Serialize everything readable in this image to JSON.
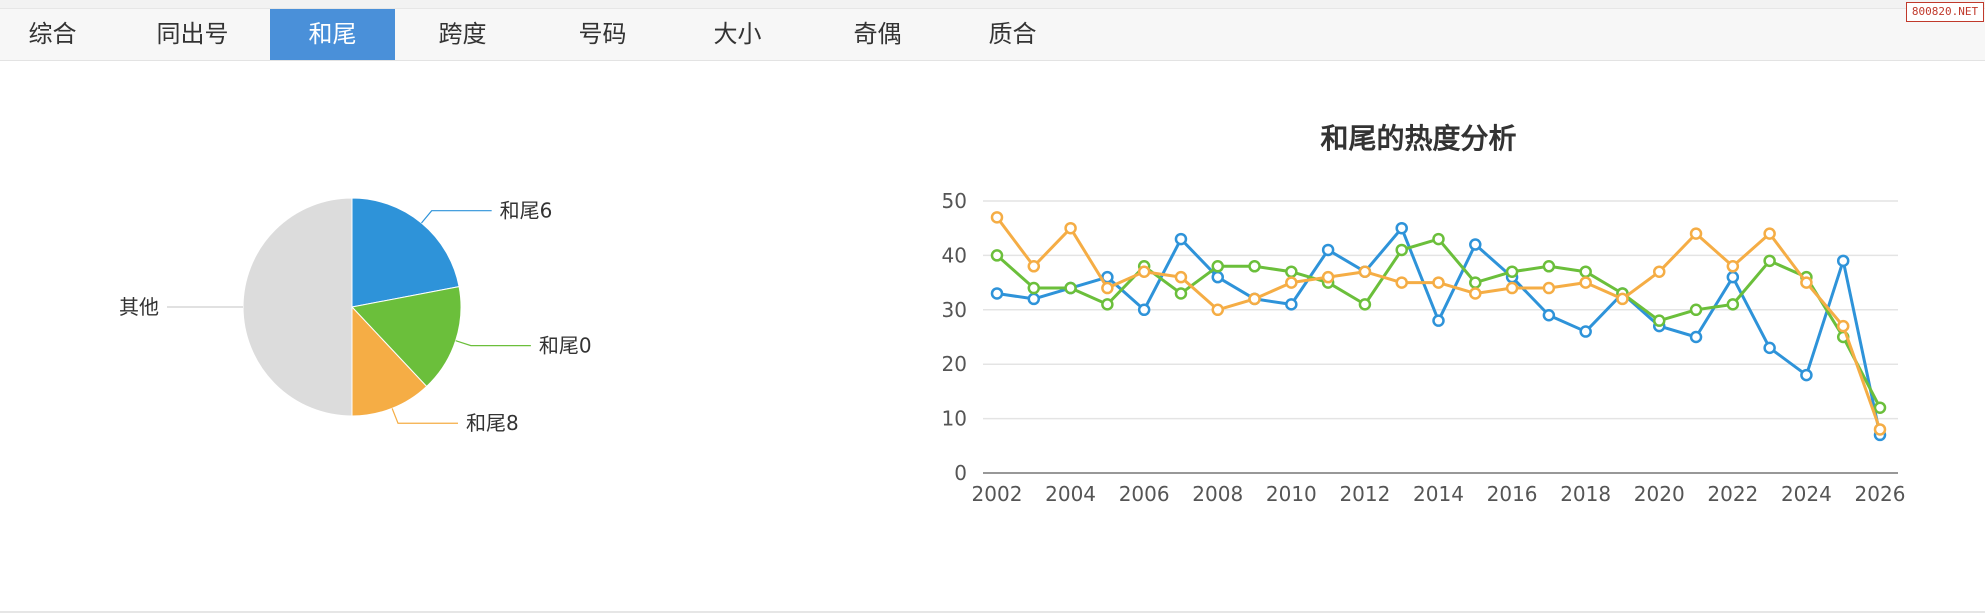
{
  "tabs": [
    {
      "label": "综合",
      "active": false
    },
    {
      "label": "同出号",
      "active": false
    },
    {
      "label": "和尾",
      "active": true
    },
    {
      "label": "跨度",
      "active": false
    },
    {
      "label": "号码",
      "active": false
    },
    {
      "label": "大小",
      "active": false
    },
    {
      "label": "奇偶",
      "active": false
    },
    {
      "label": "质合",
      "active": false
    }
  ],
  "watermark": "800820.NET",
  "colors": {
    "blue": "#2e93d9",
    "green": "#6bbf3b",
    "orange": "#f5ad45",
    "gray": "#dcdcdc",
    "active_tab": "#4a90d9"
  },
  "chart_data": [
    {
      "type": "pie",
      "slices": [
        {
          "label": "和尾6",
          "value": 22,
          "color": "#2e93d9"
        },
        {
          "label": "和尾0",
          "value": 16,
          "color": "#6bbf3b"
        },
        {
          "label": "和尾8",
          "value": 12,
          "color": "#f5ad45"
        },
        {
          "label": "其他",
          "value": 50,
          "color": "#dcdcdc"
        }
      ]
    },
    {
      "type": "line",
      "title": "和尾的热度分析",
      "x": [
        2002,
        2003,
        2004,
        2005,
        2006,
        2007,
        2008,
        2009,
        2010,
        2011,
        2012,
        2013,
        2014,
        2015,
        2016,
        2017,
        2018,
        2019,
        2020,
        2021,
        2022,
        2023,
        2024,
        2025,
        2026
      ],
      "xticks": [
        2002,
        2004,
        2006,
        2008,
        2010,
        2012,
        2014,
        2016,
        2018,
        2020,
        2022,
        2024,
        2026
      ],
      "yticks": [
        0,
        10,
        20,
        30,
        40,
        50
      ],
      "ylim": [
        0,
        50
      ],
      "grid": true,
      "series": [
        {
          "color": "#2e93d9",
          "values": [
            33,
            32,
            34,
            36,
            30,
            43,
            36,
            32,
            31,
            41,
            37,
            45,
            28,
            42,
            36,
            29,
            26,
            33,
            27,
            25,
            36,
            23,
            18,
            39,
            7
          ]
        },
        {
          "color": "#6bbf3b",
          "values": [
            40,
            34,
            34,
            31,
            38,
            33,
            38,
            38,
            37,
            35,
            31,
            41,
            43,
            35,
            37,
            38,
            37,
            33,
            28,
            30,
            31,
            39,
            36,
            25,
            12
          ]
        },
        {
          "color": "#f5ad45",
          "values": [
            47,
            38,
            45,
            34,
            37,
            36,
            30,
            32,
            35,
            36,
            37,
            35,
            35,
            33,
            34,
            34,
            35,
            32,
            37,
            44,
            38,
            44,
            35,
            27,
            8
          ]
        }
      ]
    }
  ]
}
